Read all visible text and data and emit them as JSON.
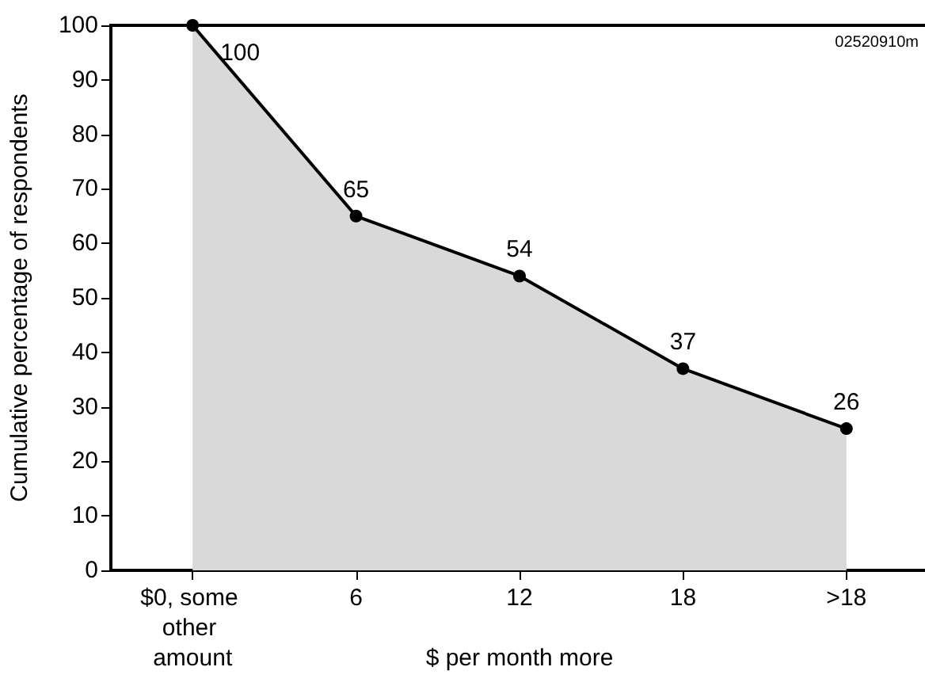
{
  "chart_data": {
    "type": "area",
    "xlabel": "$ per month more",
    "ylabel": "Cumulative percentage of respondents",
    "categories": [
      "$0, some other amount",
      "6",
      "12",
      "18",
      ">18"
    ],
    "series": [
      {
        "color": "#d9d9d9",
        "values": [
          100,
          65,
          54,
          37,
          26
        ]
      }
    ],
    "ylim": [
      0,
      100
    ],
    "yticks": [
      0,
      10,
      20,
      30,
      40,
      50,
      60,
      70,
      80,
      90,
      100
    ],
    "grid": false,
    "marker": "circle",
    "line_style": "solid",
    "data_labels": true,
    "annotations": [
      "02520910m"
    ]
  }
}
